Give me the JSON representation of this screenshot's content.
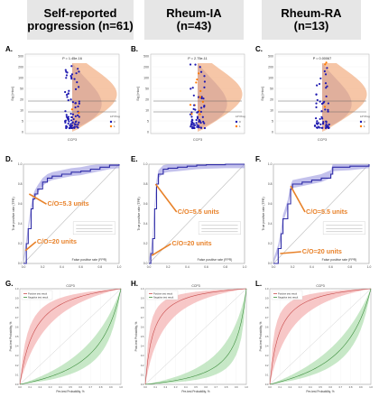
{
  "headers": [
    {
      "line1": "Self-reported",
      "line2": "progression (n=61)"
    },
    {
      "line1": "Rheum-IA",
      "line2": "(n=43)"
    },
    {
      "line1": "Rheum-RA",
      "line2": "(n=13)"
    }
  ],
  "colors": {
    "violin_left": "#8a85c6",
    "violin_right": "#f3b38a",
    "points": "#1f1ab0",
    "points_pos": "#ff7a00",
    "roc": "#2d2aa6",
    "roc_band": "#9b98e0",
    "annot": "#e8822a",
    "pos_band": "#f2a9a9",
    "neg_band": "#a9dca9",
    "pos_line": "#c84b4b",
    "neg_line": "#3e8e3e"
  },
  "chart_data": [
    {
      "type": "scatter",
      "panel": "A.",
      "title": "P = 1.45e-16",
      "ylabel": "Sig [rnkw]",
      "xlabel": "CCP3",
      "yticks": [
        "0",
        "5",
        "10",
        "20",
        "50",
        "100",
        "200",
        "500"
      ],
      "legend": [
        "0",
        "1"
      ],
      "legend_title": "LP Prog"
    },
    {
      "type": "scatter",
      "panel": "B.",
      "title": "P = 2.75e-11",
      "ylabel": "Sig [rnkw]",
      "xlabel": "CCP3",
      "yticks": [
        "0",
        "5",
        "10",
        "20",
        "50",
        "100",
        "200",
        "500"
      ],
      "legend": [
        "0",
        "1"
      ],
      "legend_title": "LP Prog"
    },
    {
      "type": "scatter",
      "panel": "C.",
      "title": "P = 0.00067",
      "ylabel": "Sig [rnkw]",
      "xlabel": "CCP3",
      "yticks": [
        "0",
        "5",
        "10",
        "20",
        "50",
        "100",
        "200",
        "500"
      ],
      "legend": [
        "0",
        "1"
      ],
      "legend_title": "LP Prog"
    },
    {
      "type": "line",
      "panel": "D.",
      "xlabel": "False positive rate (FPR)",
      "ylabel": "True positive rate (TPR)",
      "xlim": [
        0,
        1
      ],
      "ylim": [
        0,
        1
      ],
      "x": [
        0,
        0.03,
        0.05,
        0.08,
        0.1,
        0.12,
        0.15,
        0.2,
        0.25,
        0.3,
        0.4,
        0.5,
        0.6,
        0.7,
        0.8,
        0.9,
        1.0
      ],
      "y": [
        0,
        0.2,
        0.35,
        0.55,
        0.65,
        0.7,
        0.75,
        0.82,
        0.86,
        0.88,
        0.9,
        0.92,
        0.93,
        0.95,
        0.97,
        0.99,
        1.0
      ],
      "annotations": [
        "C/O=5.3 units",
        "C/O=20 units"
      ]
    },
    {
      "type": "line",
      "panel": "E.",
      "xlabel": "False positive rate (FPR)",
      "ylabel": "True positive rate (TPR)",
      "xlim": [
        0,
        1
      ],
      "ylim": [
        0,
        1
      ],
      "x": [
        0,
        0.02,
        0.04,
        0.06,
        0.08,
        0.1,
        0.15,
        0.2,
        0.3,
        0.4,
        0.5,
        0.6,
        0.8,
        1.0
      ],
      "y": [
        0,
        0.1,
        0.25,
        0.55,
        0.8,
        0.9,
        0.95,
        0.96,
        0.97,
        0.98,
        0.99,
        0.995,
        1.0,
        1.0
      ],
      "annotations": [
        "C/O=5.5 units",
        "C/O=20 units"
      ]
    },
    {
      "type": "line",
      "panel": "F.",
      "xlabel": "False positive rate (FPR)",
      "ylabel": "True positive rate (TPR)",
      "xlim": [
        0,
        1
      ],
      "ylim": [
        0,
        1
      ],
      "x": [
        0,
        0.05,
        0.08,
        0.1,
        0.15,
        0.18,
        0.2,
        0.3,
        0.4,
        0.5,
        0.6,
        0.62,
        0.8,
        1.0
      ],
      "y": [
        0,
        0.15,
        0.3,
        0.45,
        0.6,
        0.75,
        0.8,
        0.82,
        0.84,
        0.86,
        0.9,
        0.97,
        0.98,
        1.0
      ],
      "annotations": [
        "C/O=5.5 units",
        "C/O=20 units"
      ]
    },
    {
      "type": "area",
      "panel": "G.",
      "title": "CCP3",
      "xlabel": "Pre-test Probability, %",
      "ylabel": "Post-test Probability, %",
      "legend": [
        "Positive test result",
        "Negative test result"
      ]
    },
    {
      "type": "area",
      "panel": "H.",
      "title": "CCP3",
      "xlabel": "Pre-test Probability, %",
      "ylabel": "Post-test Probability, %",
      "legend": [
        "Positive test result",
        "Negative test result"
      ]
    },
    {
      "type": "area",
      "panel": "L.",
      "title": "CCP3",
      "xlabel": "Pre-test Probability, %",
      "ylabel": "Post-test Probability, %",
      "legend": [
        "Positive test result",
        "Negative test result"
      ]
    }
  ]
}
